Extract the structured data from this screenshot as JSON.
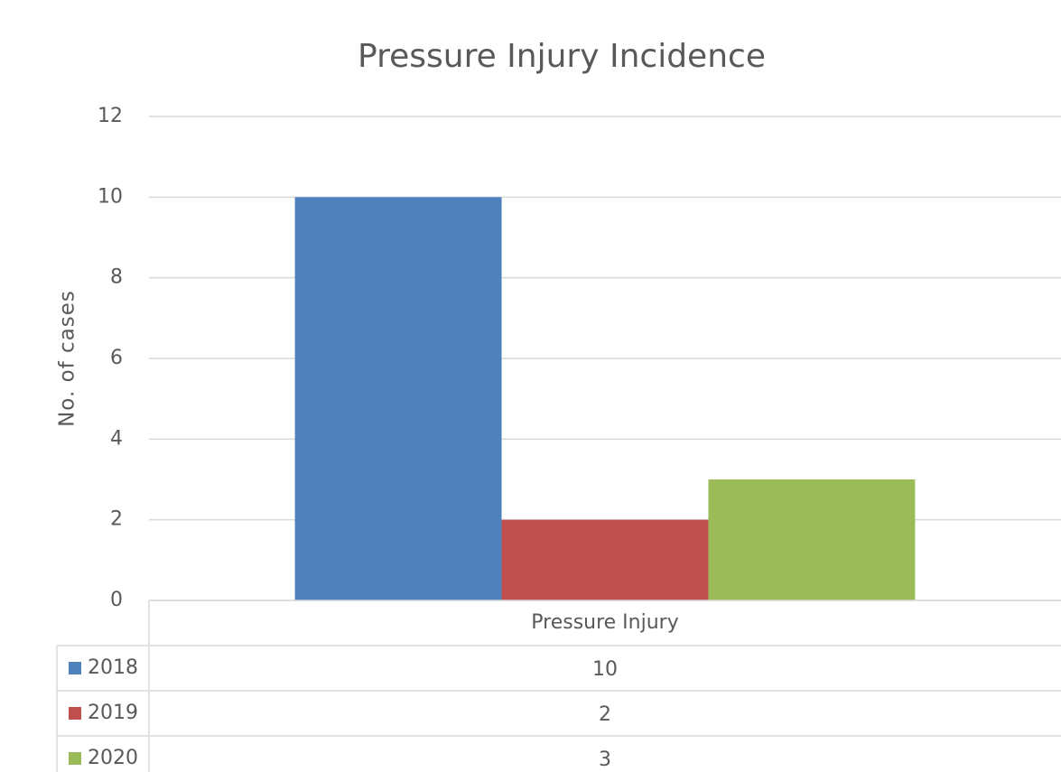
{
  "chart_data": {
    "type": "bar",
    "title": "Pressure Injury Incidence",
    "y_label": "No. of cases",
    "categories": [
      "Pressure Injury"
    ],
    "series": [
      {
        "name": "2018",
        "color": "#4f81bd",
        "values": [
          10
        ]
      },
      {
        "name": "2019",
        "color": "#c0504d",
        "values": [
          2
        ]
      },
      {
        "name": "2020",
        "color": "#9bbb59",
        "values": [
          3
        ]
      }
    ],
    "ylim": [
      0,
      12
    ],
    "yticks": [
      0,
      2,
      4,
      6,
      8,
      10,
      12
    ],
    "grid": true
  }
}
